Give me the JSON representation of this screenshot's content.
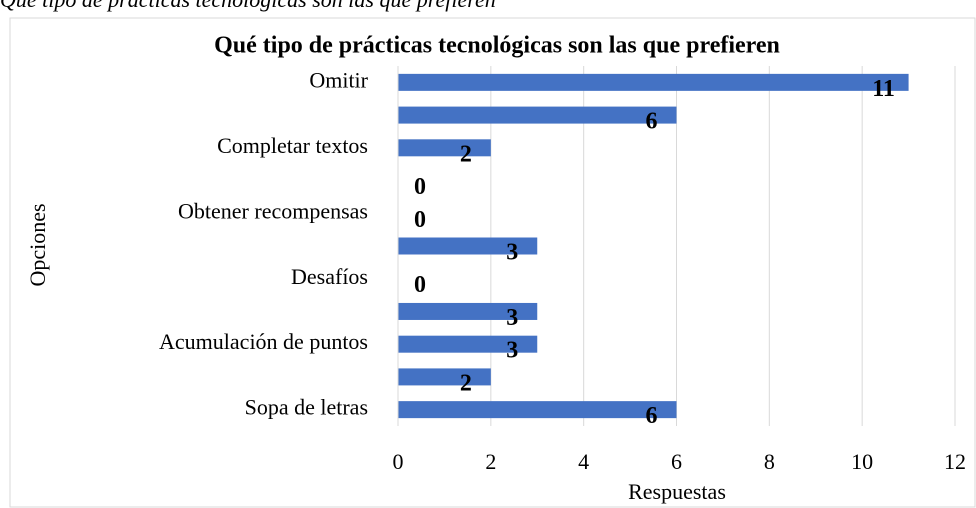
{
  "caption": "Qué tipo de prácticas tecnológicas son las que prefieren",
  "chart_data": {
    "type": "bar",
    "orientation": "horizontal",
    "title": "Qué tipo de prácticas tecnológicas son las que prefieren",
    "x_label": "Respuestas",
    "y_label": "Opciones",
    "categories": [
      "Omitir",
      null,
      "Completar textos",
      null,
      "Obtener recompensas",
      null,
      "Desafíos",
      null,
      "Acumulación de puntos",
      null,
      "Sopa de letras"
    ],
    "values": [
      11,
      6,
      2,
      0,
      0,
      3,
      0,
      3,
      3,
      2,
      6
    ],
    "color": "#4472c4",
    "xlim": [
      0,
      12
    ],
    "xticks": [
      0,
      2,
      4,
      6,
      8,
      10,
      12
    ],
    "grid": true
  }
}
